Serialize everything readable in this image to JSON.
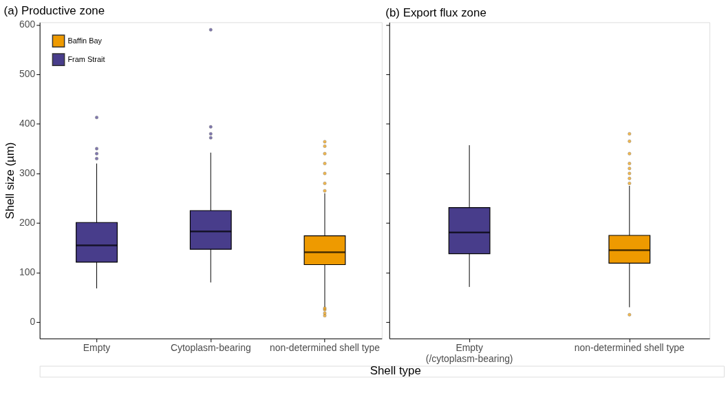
{
  "chart_data": [
    {
      "type": "box",
      "title": "(a) Productive zone",
      "xlabel": "Shell type",
      "ylabel": "Shell size (µm)",
      "categories": [
        "Empty",
        "Cytoplasm-bearing",
        "non-determined shell type"
      ],
      "ylim": [
        -33,
        605
      ],
      "yticks": [
        0,
        100,
        200,
        300,
        400,
        500,
        600
      ],
      "grid": false,
      "legend": "top left",
      "series": [
        {
          "name": "Baffin Bay",
          "color": "#ee9a00",
          "boxes": [
            null,
            null,
            {
              "low": 30,
              "q1": 116,
              "median": 141,
              "q3": 174,
              "high": 260,
              "outliers": [
                13,
                18,
                25,
                28,
                265,
                280,
                300,
                320,
                340,
                355,
                364
              ]
            }
          ]
        },
        {
          "name": "Fram Strait",
          "color": "#483d8b",
          "boxes": [
            {
              "low": 68,
              "q1": 121,
              "median": 155,
              "q3": 201,
              "high": 320,
              "outliers": [
                330,
                340,
                350,
                413
              ]
            },
            {
              "low": 80,
              "q1": 147,
              "median": 183,
              "q3": 225,
              "high": 342,
              "outliers": [
                372,
                380,
                394,
                590
              ]
            },
            null
          ]
        }
      ]
    },
    {
      "type": "box",
      "title": "(b) Export flux zone",
      "categories": [
        "Empty\n(/cytoplasm-bearing)",
        "non-determined shell type"
      ],
      "ylim": [
        -33,
        605
      ],
      "yticks": [
        0,
        100,
        200,
        300,
        400,
        500,
        600
      ],
      "grid": false,
      "tick_labels": "x",
      "series": [
        {
          "color": "#ee9a00",
          "boxes": [
            null,
            {
              "low": 30,
              "q1": 119,
              "median": 145,
              "q3": 175,
              "high": 275,
              "outliers": [
                15,
                280,
                290,
                300,
                310,
                320,
                340,
                365,
                380
              ]
            }
          ]
        },
        {
          "color": "#483d8b",
          "boxes": [
            {
              "low": 71,
              "q1": 138,
              "median": 181,
              "q3": 231,
              "high": 357
            },
            null
          ]
        }
      ]
    }
  ]
}
